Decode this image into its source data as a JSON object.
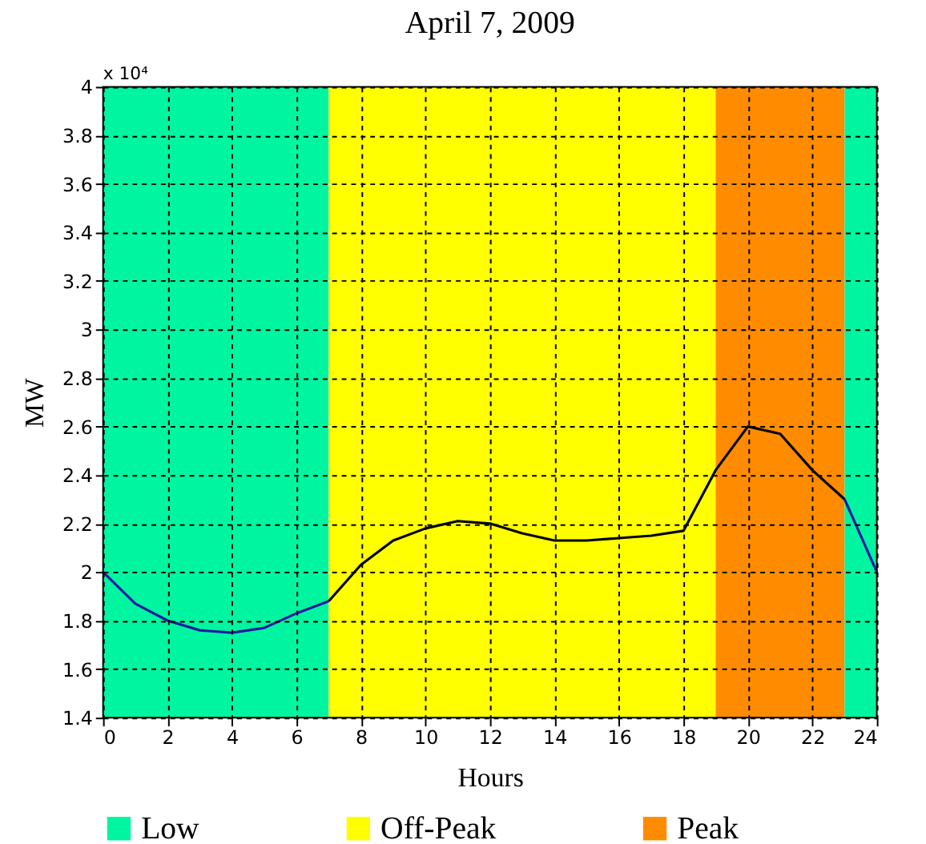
{
  "chart_data": {
    "type": "line",
    "title": "April 7, 2009",
    "xlabel": "Hours",
    "ylabel": "MW",
    "annotations": [
      "x 10⁴"
    ],
    "xlim": [
      0,
      24
    ],
    "xticks": [
      0,
      2,
      4,
      6,
      8,
      10,
      12,
      14,
      16,
      18,
      20,
      22,
      24
    ],
    "ylim": [
      1.4,
      4
    ],
    "yticks": [
      1.4,
      1.6,
      1.8,
      2,
      2.2,
      2.4,
      2.6,
      2.8,
      3,
      3.2,
      3.4,
      3.6,
      3.8,
      4
    ],
    "grid": true,
    "legend": "bottom",
    "line_style": "solid",
    "bands": [
      {
        "axis": "x",
        "from": 0,
        "to": 7,
        "label": "Low",
        "color": "#00f5a0"
      },
      {
        "axis": "x",
        "from": 7,
        "to": 19,
        "label": "Off-Peak",
        "color": "#ffff00"
      },
      {
        "axis": "x",
        "from": 19,
        "to": 23,
        "label": "Peak",
        "color": "#ff8c00"
      },
      {
        "axis": "x",
        "from": 23,
        "to": 24,
        "label": null,
        "color": "#00f5a0"
      }
    ],
    "series": [
      {
        "color": "#1c1ca0",
        "x": [
          0,
          1,
          2,
          3,
          4,
          5,
          6,
          7
        ],
        "values": [
          2.0,
          1.87,
          1.8,
          1.76,
          1.75,
          1.77,
          1.83,
          1.88
        ]
      },
      {
        "color": "#000000",
        "x": [
          7,
          8,
          9,
          10,
          11,
          12,
          13,
          14,
          15,
          16,
          17,
          18,
          19,
          20,
          21,
          22,
          23
        ],
        "values": [
          1.88,
          2.03,
          2.13,
          2.18,
          2.21,
          2.2,
          2.16,
          2.13,
          2.13,
          2.14,
          2.15,
          2.17,
          2.42,
          2.6,
          2.57,
          2.42,
          2.3
        ]
      },
      {
        "color": "#1c1ca0",
        "x": [
          23,
          24
        ],
        "values": [
          2.3,
          2.0
        ]
      }
    ]
  }
}
